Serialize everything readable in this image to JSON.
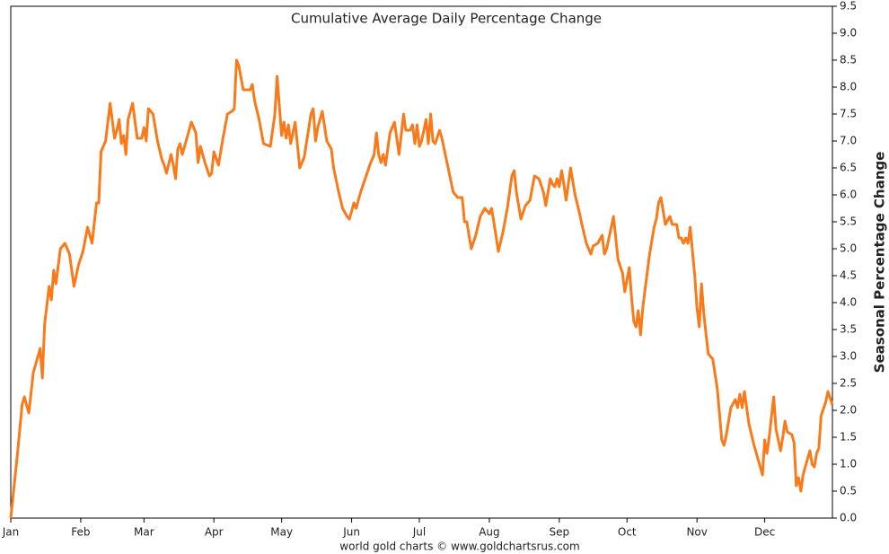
{
  "chart_data": {
    "type": "line",
    "title": "Cumulative Average Daily Percentage Change",
    "ylabel": "Seasonal Percentage Change",
    "source": "world gold charts © www.goldchartsrus.com",
    "y_axis_side": "right",
    "grid": false,
    "xlim": [
      0,
      364
    ],
    "ylim": [
      0,
      9.5
    ],
    "xticks": [
      {
        "value": 0,
        "label": "Jan"
      },
      {
        "value": 31,
        "label": "Feb"
      },
      {
        "value": 59,
        "label": "Mar"
      },
      {
        "value": 90,
        "label": "Apr"
      },
      {
        "value": 120,
        "label": "May"
      },
      {
        "value": 151,
        "label": "Jun"
      },
      {
        "value": 181,
        "label": "Jul"
      },
      {
        "value": 212,
        "label": "Aug"
      },
      {
        "value": 243,
        "label": "Sep"
      },
      {
        "value": 273,
        "label": "Oct"
      },
      {
        "value": 304,
        "label": "Nov"
      },
      {
        "value": 334,
        "label": "Dec"
      }
    ],
    "yticks": [
      {
        "value": 0,
        "label": "0.0"
      },
      0.5,
      {
        "value": 1,
        "label": "1.0"
      },
      1.5,
      {
        "value": 2,
        "label": "2.0"
      },
      2.5,
      {
        "value": 3,
        "label": "3.0"
      },
      3.5,
      {
        "value": 4,
        "label": "4.0"
      },
      4.5,
      {
        "value": 5,
        "label": "5.0"
      },
      5.5,
      {
        "value": 6,
        "label": "6.0"
      },
      6.5,
      {
        "value": 7,
        "label": "7.0"
      },
      7.5,
      {
        "value": 8,
        "label": "8.0"
      },
      8.5,
      {
        "value": 9,
        "label": "9.0"
      },
      9.5
    ],
    "series": [
      {
        "color": "#f97a1a",
        "x": [
          0,
          3,
          5,
          6,
          8,
          10,
          13,
          14,
          15,
          17,
          18,
          19,
          20,
          22,
          24,
          26,
          28,
          30,
          32,
          34,
          36,
          38,
          39,
          40,
          42,
          44,
          46,
          47,
          48,
          49,
          50,
          51,
          52,
          54,
          56,
          58,
          59,
          60,
          61,
          63,
          65,
          67,
          68,
          69,
          71,
          72,
          73,
          74,
          75,
          76,
          78,
          80,
          82,
          83,
          84,
          86,
          88,
          89,
          90,
          92,
          94,
          96,
          98,
          99,
          100,
          101,
          103,
          106,
          107,
          108,
          110,
          112,
          115,
          117,
          118,
          120,
          121,
          122,
          123,
          124,
          126,
          128,
          130,
          133,
          134,
          135,
          136,
          138,
          140,
          142,
          143,
          145,
          147,
          149,
          150,
          152,
          153,
          155,
          157,
          159,
          161,
          162,
          163,
          164,
          165,
          166,
          168,
          170,
          172,
          174,
          175,
          177,
          178,
          179,
          180,
          181,
          182,
          184,
          185,
          186,
          187,
          188,
          190,
          191,
          192,
          194,
          196,
          198,
          200,
          201,
          202,
          204,
          206,
          208,
          210,
          212,
          213,
          214,
          216,
          218,
          220,
          222,
          223,
          224,
          226,
          228,
          230,
          232,
          234,
          236,
          237,
          239,
          240,
          241,
          242,
          243,
          244,
          245,
          246,
          247,
          248,
          250,
          252,
          253,
          255,
          257,
          258,
          260,
          262,
          263,
          264,
          266,
          267,
          269,
          271,
          272,
          274,
          275,
          276,
          277,
          278,
          279,
          280,
          281,
          283,
          285,
          286,
          287,
          288,
          290,
          292,
          293,
          295,
          296,
          297,
          298,
          299,
          300,
          301,
          303,
          304,
          305,
          306,
          307,
          309,
          311,
          313,
          315,
          316,
          317,
          319,
          321,
          322,
          323,
          324,
          325,
          327,
          329,
          331,
          332,
          333,
          334,
          335,
          336,
          338,
          339,
          341,
          342,
          343,
          344,
          346,
          347,
          348,
          349,
          350,
          351,
          352,
          354,
          355,
          356,
          357,
          358,
          359,
          361,
          362,
          364
        ],
        "values": [
          0,
          1.2,
          2.1,
          2.25,
          1.95,
          2.7,
          3.15,
          2.6,
          3.6,
          4.3,
          4.05,
          4.6,
          4.35,
          5.0,
          5.1,
          4.9,
          4.3,
          4.7,
          4.95,
          5.4,
          5.1,
          5.85,
          5.85,
          6.8,
          7.0,
          7.7,
          7.05,
          7.2,
          7.4,
          6.95,
          7.1,
          6.75,
          7.4,
          7.7,
          7.05,
          7.05,
          7.25,
          7.0,
          7.6,
          7.5,
          7.0,
          6.65,
          6.55,
          6.4,
          6.75,
          6.55,
          6.3,
          6.85,
          6.95,
          6.75,
          7.05,
          7.35,
          7.15,
          6.6,
          6.9,
          6.6,
          6.35,
          6.4,
          6.8,
          6.55,
          7.05,
          7.5,
          7.55,
          7.6,
          8.5,
          8.4,
          7.95,
          7.95,
          8.05,
          7.75,
          7.4,
          6.95,
          6.9,
          7.5,
          8.2,
          7.1,
          7.35,
          7.05,
          7.3,
          6.95,
          7.35,
          6.5,
          6.7,
          7.5,
          7.6,
          7.0,
          7.25,
          7.55,
          7.0,
          6.85,
          6.5,
          6.1,
          5.75,
          5.6,
          5.55,
          5.85,
          5.75,
          6.05,
          6.3,
          6.55,
          6.75,
          7.15,
          6.75,
          6.6,
          6.75,
          6.55,
          7.15,
          7.35,
          6.75,
          7.5,
          7.2,
          7.2,
          7.3,
          6.95,
          7.3,
          6.9,
          7.0,
          7.4,
          6.95,
          7.5,
          7.0,
          6.95,
          7.2,
          7.05,
          6.85,
          6.45,
          6.05,
          5.95,
          5.95,
          5.5,
          5.5,
          5.0,
          5.25,
          5.6,
          5.75,
          5.65,
          5.75,
          5.5,
          4.95,
          5.3,
          5.75,
          6.35,
          6.45,
          6.05,
          5.55,
          5.8,
          5.9,
          6.35,
          6.3,
          6.05,
          5.8,
          6.3,
          6.2,
          6.15,
          6.3,
          6.15,
          6.45,
          6.2,
          5.9,
          6.2,
          6.5,
          6.0,
          5.65,
          5.45,
          5.1,
          4.9,
          5.05,
          5.1,
          5.25,
          4.9,
          5.0,
          5.4,
          5.6,
          4.8,
          4.55,
          4.2,
          4.65,
          4.1,
          3.65,
          3.55,
          3.85,
          3.4,
          3.9,
          4.25,
          4.9,
          5.4,
          5.55,
          5.85,
          5.95,
          5.45,
          5.6,
          5.45,
          5.45,
          5.2,
          5.2,
          5.1,
          5.2,
          5.1,
          5.4,
          4.5,
          3.9,
          3.55,
          4.35,
          3.8,
          3.05,
          2.95,
          2.4,
          1.45,
          1.35,
          1.55,
          2.05,
          2.2,
          2.05,
          2.3,
          2.05,
          2.35,
          1.75,
          1.4,
          1.1,
          0.95,
          0.8,
          1.45,
          1.2,
          1.5,
          2.25,
          1.65,
          1.25,
          1.5,
          1.8,
          1.6,
          1.55,
          1.4,
          0.6,
          0.75,
          0.5,
          0.8,
          0.95,
          1.25,
          1.0,
          0.95,
          1.2,
          1.3,
          1.9,
          2.15,
          2.35,
          2.1
        ]
      }
    ]
  }
}
